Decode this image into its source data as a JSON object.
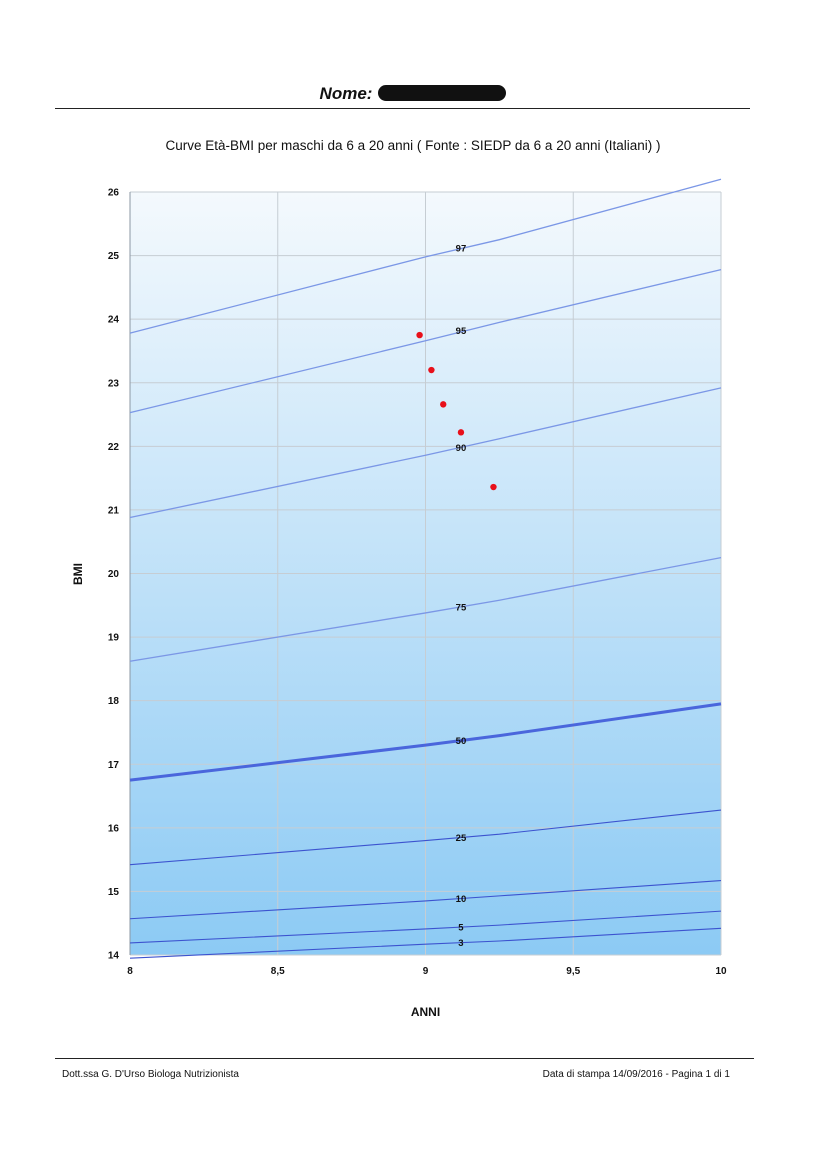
{
  "header": {
    "name_label": "Nome:",
    "name_value_redacted": true
  },
  "footer": {
    "left": "Dott.ssa G. D'Urso Biologa Nutrizionista",
    "right": "Data di stampa 14/09/2016  - Pagina 1 di 1"
  },
  "colors": {
    "curve": "#7b97e6",
    "curve_median": "#4a66dc",
    "curve_low": "#3c53cf",
    "point": "#e8101a",
    "bg_top": "#f4f9fd",
    "bg_bottom": "#8ccaf4",
    "grid": "#c6cdd3"
  },
  "chart_data": {
    "type": "line",
    "title": "Curve Età-BMI per maschi da 6 a 20 anni ( Fonte : SIEDP da 6 a 20 anni (Italiani) )",
    "xlabel": "ANNI",
    "ylabel": "BMI",
    "xlim": [
      8,
      10
    ],
    "ylim": [
      14,
      26
    ],
    "x_ticks": [
      8,
      8.5,
      9,
      9.5,
      10
    ],
    "x_tick_labels": [
      "8",
      "8,5",
      "9",
      "9,5",
      "10"
    ],
    "y_ticks": [
      14,
      15,
      16,
      17,
      18,
      19,
      20,
      21,
      22,
      23,
      24,
      25,
      26
    ],
    "y_tick_labels": [
      "14",
      "15",
      "16",
      "17",
      "18",
      "19",
      "20",
      "21",
      "22",
      "23",
      "24",
      "25",
      "26"
    ],
    "grid": true,
    "series": [
      {
        "name": "97",
        "x": [
          8,
          9,
          9.25,
          10
        ],
        "y": [
          23.78,
          24.98,
          25.25,
          26.2
        ],
        "label_at": [
          9.12,
          25.12
        ]
      },
      {
        "name": "95",
        "x": [
          8,
          9,
          9.25,
          10
        ],
        "y": [
          22.53,
          23.66,
          23.95,
          24.78
        ],
        "label_at": [
          9.12,
          23.82
        ]
      },
      {
        "name": "90",
        "x": [
          8,
          9,
          9.25,
          10
        ],
        "y": [
          20.88,
          21.86,
          22.12,
          22.92
        ],
        "label_at": [
          9.12,
          21.98
        ]
      },
      {
        "name": "75",
        "x": [
          8,
          9,
          9.25,
          10
        ],
        "y": [
          18.62,
          19.38,
          19.58,
          20.25
        ],
        "label_at": [
          9.12,
          19.47
        ]
      },
      {
        "name": "50",
        "x": [
          8,
          9,
          9.25,
          10
        ],
        "y": [
          16.75,
          17.3,
          17.45,
          17.95
        ],
        "label_at": [
          9.12,
          17.37
        ]
      },
      {
        "name": "25",
        "x": [
          8,
          9,
          9.25,
          10
        ],
        "y": [
          15.42,
          15.8,
          15.9,
          16.28
        ],
        "label_at": [
          9.12,
          15.85
        ]
      },
      {
        "name": "10",
        "x": [
          8,
          9,
          9.25,
          10
        ],
        "y": [
          14.57,
          14.85,
          14.93,
          15.17
        ],
        "label_at": [
          9.12,
          14.89
        ]
      },
      {
        "name": "5",
        "x": [
          8,
          9,
          9.25,
          10
        ],
        "y": [
          14.19,
          14.41,
          14.47,
          14.69
        ],
        "label_at": [
          9.12,
          14.44
        ]
      },
      {
        "name": "3",
        "x": [
          8,
          9,
          9.25,
          10
        ],
        "y": [
          13.95,
          14.17,
          14.22,
          14.42
        ],
        "label_at": [
          9.12,
          14.2
        ]
      }
    ],
    "points": [
      {
        "x": 8.98,
        "y": 23.75
      },
      {
        "x": 9.02,
        "y": 23.2
      },
      {
        "x": 9.06,
        "y": 22.66
      },
      {
        "x": 9.12,
        "y": 22.22
      },
      {
        "x": 9.23,
        "y": 21.36
      }
    ]
  }
}
